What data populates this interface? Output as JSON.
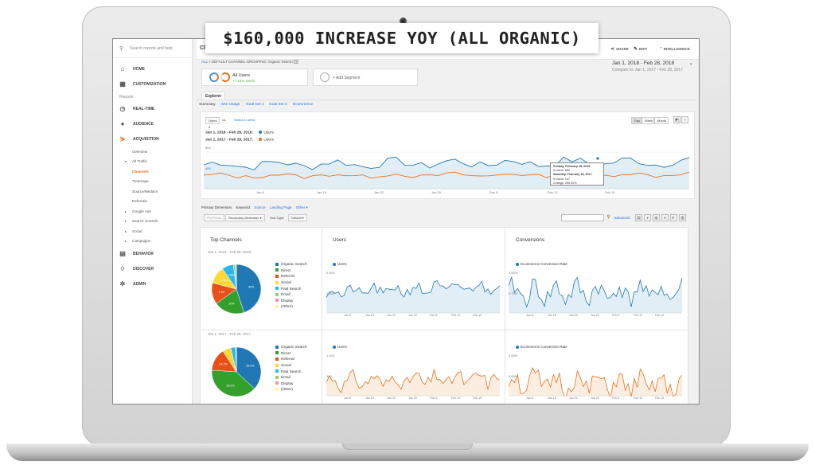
{
  "banner": {
    "text": "$160,000 INCREASE YOY (ALL ORGANIC)"
  },
  "sidebar": {
    "search_placeholder": "Search reports and help",
    "top_items": [
      {
        "label": "HOME",
        "icon": "home-icon"
      },
      {
        "label": "CUSTOMIZATION",
        "icon": "dashboard-icon"
      }
    ],
    "section_label": "Reports",
    "report_items": [
      {
        "label": "REAL-TIME",
        "icon": "clock-icon"
      },
      {
        "label": "AUDIENCE",
        "icon": "person-icon"
      },
      {
        "label": "ACQUISITION",
        "icon": "acquisition-icon"
      }
    ],
    "acq_sub": [
      "Overview",
      "All Traffic",
      "Channels",
      "Treemaps",
      "Source/Medium",
      "Referrals",
      "Google Ads",
      "Search Console",
      "Social",
      "Campaigns"
    ],
    "bottom_items": [
      {
        "label": "BEHAVIOR",
        "icon": "behavior-icon"
      },
      {
        "label": "DISCOVER",
        "icon": "lightbulb-icon"
      },
      {
        "label": "ADMIN",
        "icon": "gear-icon"
      }
    ]
  },
  "header": {
    "title_partial": "Cha",
    "actions": [
      {
        "label": "EXPORT",
        "icon": "export-icon"
      },
      {
        "label": "SHARE",
        "icon": "share-icon"
      },
      {
        "label": "EDIT",
        "icon": "pencil-icon"
      },
      {
        "label": "INTELLIGENCE",
        "icon": "intelligence-icon"
      }
    ],
    "breadcrumb_all": "ALL",
    "breadcrumb_rest": "» DEFAULT CHANNEL GROUPING: Organic Search",
    "date_range": "Jan 1, 2018 - Feb 28, 2018",
    "compare_range": "Compare to: Jan 1, 2017 - Feb 28, 2017"
  },
  "segments": {
    "all_users": "All Users",
    "all_users_change": "+7.15% Users",
    "add_segment": "+ Add Segment"
  },
  "explorer": {
    "tab": "Explorer",
    "subtabs": [
      "Summary",
      "Site Usage",
      "Goal Set 1",
      "Goal Set 2",
      "Ecommerce"
    ]
  },
  "chart_controls": {
    "metric": "Users",
    "vs": "vs.",
    "select_metric": "Select a metric",
    "granularity": [
      "Day",
      "Week",
      "Month"
    ]
  },
  "main_chart": {
    "legend_2018_range": "Jan 1, 2018 - Feb 28, 2018:",
    "legend_2018_metric": "Users",
    "legend_2017_range": "Jan 1, 2017 - Feb 28, 2017:",
    "legend_2017_metric": "Users",
    "y_ticks": [
      "800",
      "400"
    ],
    "x_ticks": [
      "Jan 8",
      "Jan 15",
      "Jan 22",
      "Jan 29",
      "Feb 5",
      "Feb 12",
      "Feb 19"
    ],
    "tooltip": {
      "line1": "Sunday, February 18, 2018",
      "line2": "● Users: 582",
      "line3": "Saturday, February 18, 2017",
      "line4": "● Users: 147",
      "line5": "Change: 295.92%"
    },
    "colors": {
      "current": "#1f78b4",
      "previous": "#e8711a"
    }
  },
  "table_controls": {
    "primary_label": "Primary Dimension:",
    "dims": [
      "Keyword",
      "Source",
      "Landing Page",
      "Other ▾"
    ],
    "plot_rows": "Plot Rows",
    "secondary": "Secondary dimension ▾",
    "sort_label": "Sort Type:",
    "sort_value": "Default ▾",
    "advanced": "advanced"
  },
  "panels": {
    "top_channels_title": "Top Channels",
    "users_title": "Users",
    "conversions_title": "Conversions",
    "range_2018": "Jan 1, 2018 - Feb 28, 2018",
    "range_2017": "Jan 1, 2017 - Feb 28, 2017",
    "users_legend": "Users",
    "conv_legend": "Ecommerce Conversion Rate",
    "users_2018_ticks": [
      "2,000",
      "1,000"
    ],
    "users_2017_ticks": [
      "1,000",
      "500"
    ],
    "conv_2018_ticks": [
      "1.50%",
      "0.75%"
    ],
    "conv_2017_ticks": [
      "5.00%",
      "2.50%"
    ],
    "mini_x_ticks": [
      "Jan 8",
      "Jan 15",
      "Jan 22",
      "Jan 29",
      "Feb 5",
      "Feb 12",
      "Feb 19"
    ]
  },
  "pie_legend": [
    "Organic Search",
    "Direct",
    "Referral",
    "Social",
    "Paid Search",
    "Email",
    "Display",
    "(Other)"
  ],
  "pie_colors": [
    "#1f78b4",
    "#33a02c",
    "#e8501a",
    "#fdd835",
    "#29b6f6",
    "#9ccc65",
    "#f48fb1",
    "#fff59d"
  ],
  "chart_data": [
    {
      "type": "pie",
      "title": "Top Channels",
      "subtitle": "Jan 1, 2018 - Feb 28, 2018",
      "categories": [
        "Organic Search",
        "Direct",
        "Referral",
        "Social",
        "Paid Search",
        "Email",
        "Display",
        "(Other)"
      ],
      "values": [
        45,
        20,
        14,
        11.5,
        7.5,
        1.5,
        0.3,
        0.2
      ],
      "labels": [
        "45%",
        "20%",
        "14%",
        "11.5%",
        "7.5%",
        "",
        "",
        ""
      ]
    },
    {
      "type": "pie",
      "title": "Top Channels",
      "subtitle": "Jan 1, 2017 - Feb 28, 2017",
      "categories": [
        "Organic Search",
        "Direct",
        "Referral",
        "Social",
        "Paid Search",
        "Email",
        "Display",
        "(Other)"
      ],
      "values": [
        36.9,
        39.2,
        14.7,
        5.5,
        3.2,
        0.3,
        0.1,
        0.1
      ],
      "labels": [
        "36.9%",
        "39.2%",
        "14.7%",
        "",
        "",
        "",
        "",
        ""
      ]
    }
  ]
}
